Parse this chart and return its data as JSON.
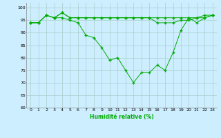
{
  "title": "",
  "xlabel": "Humidité relative (%)",
  "ylabel": "",
  "background_color": "#cceeff",
  "grid_color": "#aacccc",
  "line_color": "#00aa00",
  "xlim": [
    -0.5,
    23.5
  ],
  "ylim": [
    60,
    102
  ],
  "yticks": [
    60,
    65,
    70,
    75,
    80,
    85,
    90,
    95,
    100
  ],
  "xticks": [
    0,
    1,
    2,
    3,
    4,
    5,
    6,
    7,
    8,
    9,
    10,
    11,
    12,
    13,
    14,
    15,
    16,
    17,
    18,
    19,
    20,
    21,
    22,
    23
  ],
  "series": [
    [
      94,
      94,
      97,
      96,
      98,
      96,
      96,
      96,
      96,
      96,
      96,
      96,
      96,
      96,
      96,
      96,
      96,
      96,
      96,
      96,
      96,
      96,
      96,
      97
    ],
    [
      94,
      94,
      97,
      96,
      96,
      95,
      94,
      89,
      88,
      84,
      79,
      80,
      75,
      70,
      74,
      74,
      77,
      75,
      82,
      91,
      96,
      94,
      96,
      97
    ],
    [
      94,
      94,
      97,
      96,
      98,
      96,
      96,
      96,
      96,
      96,
      96,
      96,
      96,
      96,
      96,
      96,
      94,
      94,
      94,
      95,
      95,
      96,
      97,
      97
    ]
  ]
}
